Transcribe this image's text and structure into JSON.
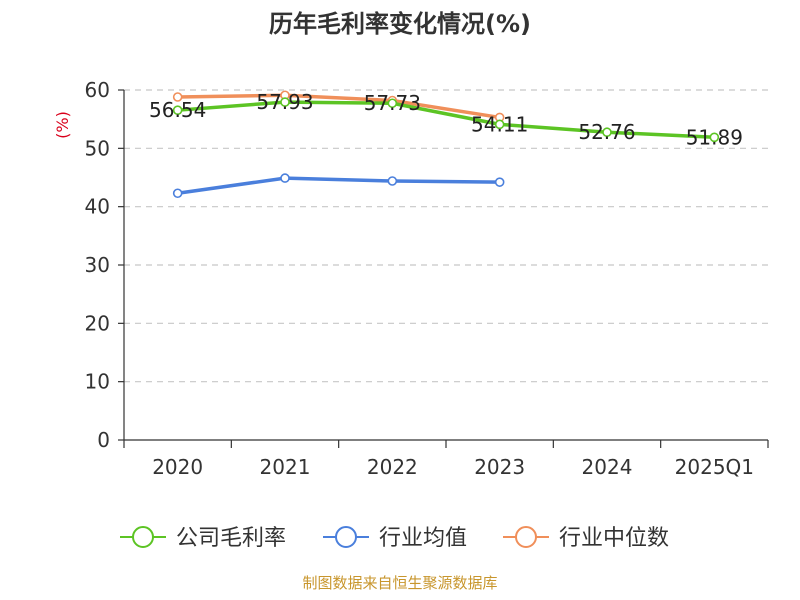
{
  "chart_data": {
    "type": "line",
    "title": "历年毛利率变化情况(%)",
    "ylabel": "(%)",
    "xlabel": "",
    "ylim": [
      0,
      60
    ],
    "yticks": [
      0,
      10,
      20,
      30,
      40,
      50,
      60
    ],
    "grid": true,
    "legend_position": "bottom",
    "categories": [
      "2020",
      "2021",
      "2022",
      "2023",
      "2024",
      "2025Q1"
    ],
    "series": [
      {
        "name": "公司毛利率",
        "color": "#5cc424",
        "values": [
          56.54,
          57.93,
          57.73,
          54.11,
          52.76,
          51.89
        ],
        "labels": [
          "56.54",
          "57.93",
          "57.73",
          "54.11",
          "52.76",
          "51.89"
        ]
      },
      {
        "name": "行业均值",
        "color": "#4a7fdc",
        "values": [
          42.3,
          44.9,
          44.4,
          44.2,
          null,
          null
        ],
        "labels": []
      },
      {
        "name": "行业中位数",
        "color": "#f08f5a",
        "values": [
          58.8,
          59.1,
          58.2,
          55.3,
          null,
          null
        ],
        "labels": []
      }
    ]
  },
  "source": "制图数据来自恒生聚源数据库"
}
